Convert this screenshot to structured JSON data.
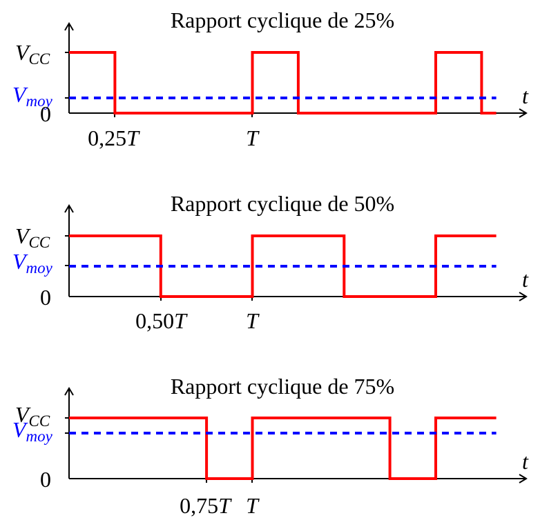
{
  "chart_data": [
    {
      "type": "line",
      "title": "Rapport cyclique de 25%",
      "duty_cycle": 0.25,
      "x_axis_label": "t",
      "y_tick_labels": {
        "high": "V",
        "high_sub": "CC",
        "mean": "V",
        "mean_sub": "moy",
        "zero": "0"
      },
      "x_tick_labels": [
        {
          "x": 0.25,
          "num": "0,25",
          "var": "T"
        },
        {
          "x": 1.0,
          "num": "",
          "var": "T"
        }
      ],
      "xlim": [
        0,
        2.35
      ],
      "ylim": [
        0,
        1.5
      ],
      "series": [
        {
          "color": "#ff0000",
          "x": [
            0,
            0.25,
            0.25,
            1,
            1,
            1.25,
            1.25,
            2,
            2,
            2.25,
            2.25,
            2.33
          ],
          "y": [
            1,
            1,
            0,
            0,
            1,
            1,
            0,
            0,
            1,
            1,
            0,
            0
          ]
        },
        {
          "color": "#0000ff",
          "style": "dashed",
          "x": [
            0,
            2.33
          ],
          "y": [
            0.25,
            0.25
          ]
        }
      ]
    },
    {
      "type": "line",
      "title": "Rapport cyclique de 50%",
      "duty_cycle": 0.5,
      "x_axis_label": "t",
      "y_tick_labels": {
        "high": "V",
        "high_sub": "CC",
        "mean": "V",
        "mean_sub": "moy",
        "zero": "0"
      },
      "x_tick_labels": [
        {
          "x": 0.5,
          "num": "0,50",
          "var": "T"
        },
        {
          "x": 1.0,
          "num": "",
          "var": "T"
        }
      ],
      "xlim": [
        0,
        2.35
      ],
      "ylim": [
        0,
        1.5
      ],
      "series": [
        {
          "color": "#ff0000",
          "x": [
            0,
            0.5,
            0.5,
            1,
            1,
            1.5,
            1.5,
            2,
            2,
            2.33
          ],
          "y": [
            1,
            1,
            0,
            0,
            1,
            1,
            0,
            0,
            1,
            1
          ]
        },
        {
          "color": "#0000ff",
          "style": "dashed",
          "x": [
            0,
            2.33
          ],
          "y": [
            0.5,
            0.5
          ]
        }
      ]
    },
    {
      "type": "line",
      "title": "Rapport cyclique de 75%",
      "duty_cycle": 0.75,
      "x_axis_label": "t",
      "y_tick_labels": {
        "high": "V",
        "high_sub": "CC",
        "mean": "V",
        "mean_sub": "moy",
        "zero": "0"
      },
      "x_tick_labels": [
        {
          "x": 0.75,
          "num": "0,75",
          "var": "T"
        },
        {
          "x": 1.0,
          "num": "",
          "var": "T"
        }
      ],
      "xlim": [
        0,
        2.35
      ],
      "ylim": [
        0,
        1.5
      ],
      "series": [
        {
          "color": "#ff0000",
          "x": [
            0,
            0.75,
            0.75,
            1,
            1,
            1.75,
            1.75,
            2,
            2,
            2.33
          ],
          "y": [
            1,
            1,
            0,
            0,
            1,
            1,
            0,
            0,
            1,
            1
          ]
        },
        {
          "color": "#0000ff",
          "style": "dashed",
          "x": [
            0,
            2.33
          ],
          "y": [
            0.75,
            0.75
          ]
        }
      ]
    }
  ]
}
